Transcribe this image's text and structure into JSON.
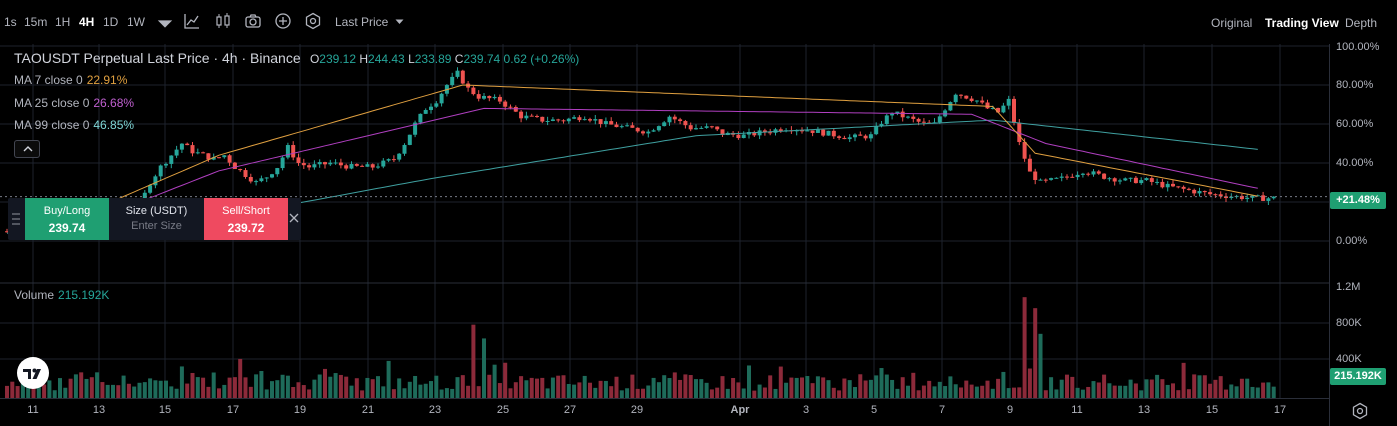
{
  "toolbar": {
    "timeframes": [
      "1s",
      "15m",
      "1H",
      "4H",
      "1D",
      "1W"
    ],
    "active_timeframe": "4H",
    "price_source": "Last Price",
    "views": [
      "Original",
      "Trading View",
      "Depth"
    ],
    "active_view": "Trading View"
  },
  "legend": {
    "symbol": "TAOUSDT Perpetual Last Price · 4h · Binance",
    "open_label": "O",
    "open": "239.12",
    "high_label": "H",
    "high": "244.43",
    "low_label": "L",
    "low": "233.89",
    "close_label": "C",
    "close": "239.74",
    "change": "0.62 (+0.26%)",
    "ma7_label": "MA 7 close 0",
    "ma7_value": "22.91%",
    "ma25_label": "MA 25 close 0",
    "ma25_value": "26.68%",
    "ma99_label": "MA 99 close 0",
    "ma99_value": "46.85%"
  },
  "volume_legend": {
    "label": "Volume",
    "value": "215.192K"
  },
  "order_panel": {
    "buy_label": "Buy/Long",
    "buy_price": "239.74",
    "size_label": "Size (USDT)",
    "size_placeholder": "Enter Size",
    "sell_label": "Sell/Short",
    "sell_price": "239.72"
  },
  "price_axis": {
    "labels": [
      "100.00%",
      "80.00%",
      "60.00%",
      "40.00%",
      "0.00%"
    ],
    "current_badge": "+21.48%"
  },
  "volume_axis": {
    "labels": [
      "1.2M",
      "800K",
      "400K"
    ],
    "current_badge": "215.192K"
  },
  "time_axis": {
    "labels": [
      "11",
      "13",
      "15",
      "17",
      "19",
      "21",
      "23",
      "25",
      "27",
      "29",
      "Apr",
      "3",
      "5",
      "7",
      "9",
      "11",
      "13",
      "15",
      "17"
    ]
  },
  "colors": {
    "up": "#26a69a",
    "down": "#ef5350",
    "ma7": "#e0a040",
    "ma25": "#b03fc0",
    "ma99": "#3fa0a0",
    "buy": "#1f9f72",
    "sell": "#ef4a60"
  },
  "chart_data": {
    "type": "candlestick",
    "y_unit": "percent change",
    "ylim": [
      -10,
      100
    ],
    "x_start_label": "11",
    "bar_interval": "4h",
    "anchors": [
      [
        0,
        5
      ],
      [
        4,
        3
      ],
      [
        8,
        4
      ],
      [
        12,
        6
      ],
      [
        16,
        10
      ],
      [
        20,
        12
      ],
      [
        24,
        14
      ],
      [
        26,
        18
      ],
      [
        28,
        30
      ],
      [
        30,
        38
      ],
      [
        32,
        44
      ],
      [
        34,
        50
      ],
      [
        36,
        46
      ],
      [
        38,
        44
      ],
      [
        40,
        42
      ],
      [
        42,
        44
      ],
      [
        44,
        38
      ],
      [
        46,
        34
      ],
      [
        48,
        30
      ],
      [
        50,
        33
      ],
      [
        52,
        38
      ],
      [
        54,
        48
      ],
      [
        56,
        40
      ],
      [
        58,
        38
      ],
      [
        62,
        40
      ],
      [
        66,
        38
      ],
      [
        70,
        38
      ],
      [
        74,
        42
      ],
      [
        76,
        50
      ],
      [
        78,
        60
      ],
      [
        80,
        68
      ],
      [
        82,
        72
      ],
      [
        84,
        80
      ],
      [
        86,
        86
      ],
      [
        88,
        78
      ],
      [
        90,
        74
      ],
      [
        94,
        72
      ],
      [
        96,
        68
      ],
      [
        98,
        64
      ],
      [
        102,
        62
      ],
      [
        106,
        62
      ],
      [
        110,
        64
      ],
      [
        114,
        60
      ],
      [
        118,
        58
      ],
      [
        122,
        56
      ],
      [
        126,
        64
      ],
      [
        130,
        58
      ],
      [
        134,
        58
      ],
      [
        136,
        55
      ],
      [
        140,
        54
      ],
      [
        144,
        56
      ],
      [
        148,
        58
      ],
      [
        152,
        57
      ],
      [
        156,
        55
      ],
      [
        160,
        53
      ],
      [
        164,
        54
      ],
      [
        166,
        61
      ],
      [
        168,
        66
      ],
      [
        170,
        64
      ],
      [
        172,
        62
      ],
      [
        174,
        60
      ],
      [
        176,
        60
      ],
      [
        178,
        68
      ],
      [
        180,
        76
      ],
      [
        182,
        74
      ],
      [
        184,
        72
      ],
      [
        186,
        68
      ],
      [
        188,
        66
      ],
      [
        190,
        72
      ],
      [
        192,
        50
      ],
      [
        194,
        35
      ],
      [
        196,
        30
      ],
      [
        200,
        32
      ],
      [
        204,
        36
      ],
      [
        208,
        33
      ],
      [
        212,
        31
      ],
      [
        216,
        31
      ],
      [
        220,
        28
      ],
      [
        224,
        26
      ],
      [
        228,
        24
      ],
      [
        232,
        23
      ],
      [
        236,
        22
      ]
    ],
    "ma7_anchors": [
      [
        6,
        4
      ],
      [
        40,
        44
      ],
      [
        86,
        80
      ],
      [
        186,
        69
      ],
      [
        194,
        45
      ],
      [
        236,
        23
      ]
    ],
    "ma25_anchors": [
      [
        10,
        4
      ],
      [
        40,
        36
      ],
      [
        90,
        68
      ],
      [
        182,
        65
      ],
      [
        196,
        50
      ],
      [
        236,
        27
      ]
    ],
    "ma99_anchors": [
      [
        0,
        4
      ],
      [
        40,
        12
      ],
      [
        80,
        32
      ],
      [
        130,
        54
      ],
      [
        186,
        62
      ],
      [
        236,
        47
      ]
    ],
    "volume_unit": "K",
    "volume_ylim": [
      0,
      1200
    ],
    "volume_spikes": [
      [
        88,
        800
      ],
      [
        90,
        650
      ],
      [
        192,
        1100
      ],
      [
        194,
        980
      ],
      [
        195,
        700
      ]
    ]
  }
}
